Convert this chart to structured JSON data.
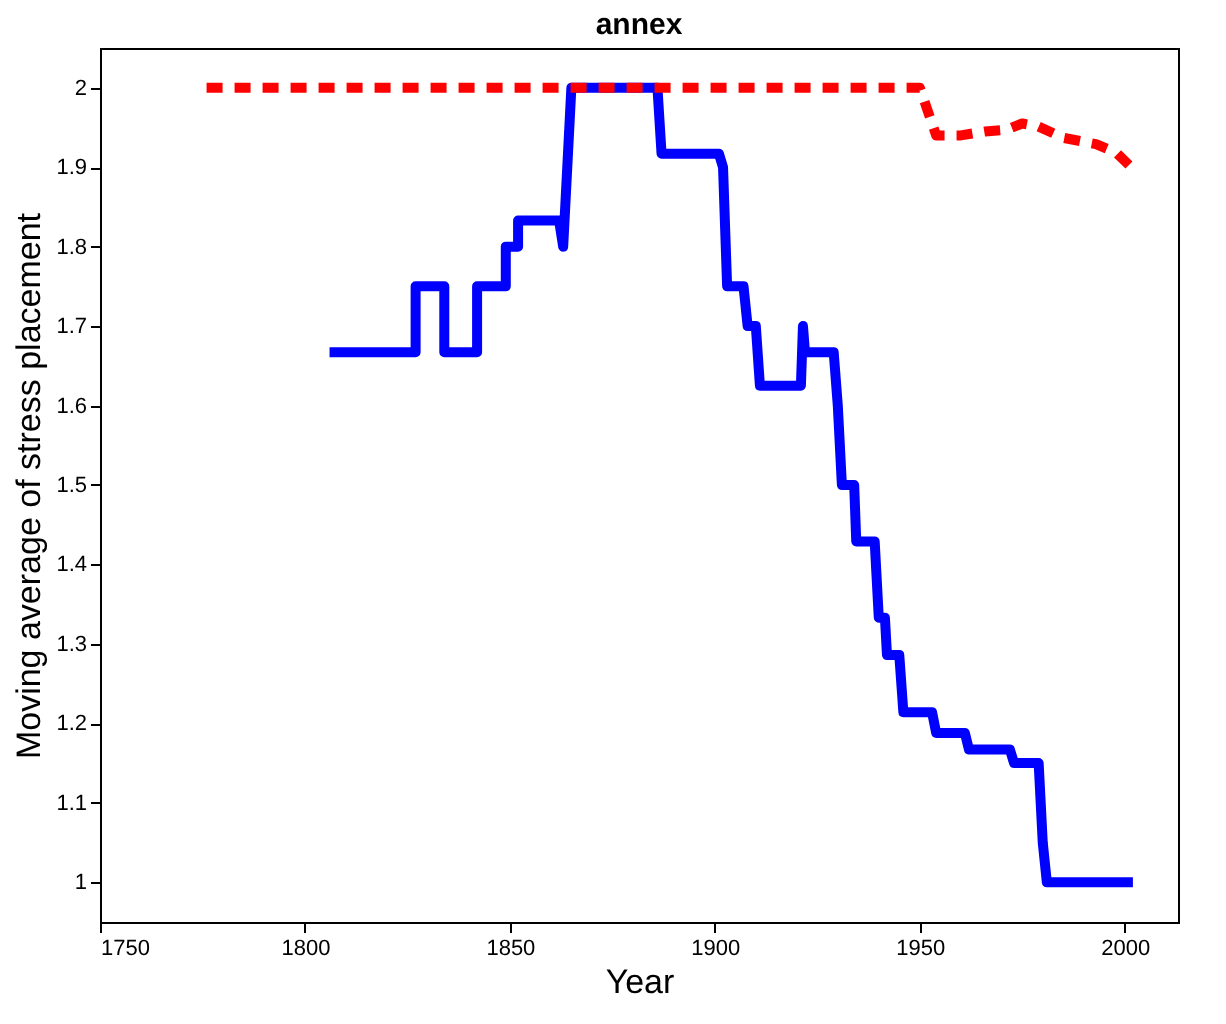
{
  "chart_data": {
    "type": "line",
    "title": "annex",
    "xlabel": "Year",
    "ylabel": "Moving average of stress placement",
    "xlim": [
      1750,
      2013
    ],
    "xticks": [
      1750,
      1800,
      1850,
      1900,
      1950,
      2000
    ],
    "ylim": [
      0.95,
      2.05
    ],
    "yticks": [
      1,
      1.1,
      1.2,
      1.3,
      1.4,
      1.5,
      1.6,
      1.7,
      1.8,
      1.9,
      2
    ],
    "grid": false,
    "marker": "none",
    "series": [
      {
        "color": "#0000ff",
        "line_style": "solid",
        "x": [
          1806,
          1827,
          1827,
          1834,
          1834,
          1842,
          1842,
          1849,
          1849,
          1852,
          1852,
          1862,
          1863,
          1865,
          1886,
          1887,
          1901,
          1902,
          1903,
          1907,
          1908,
          1910,
          1911,
          1921,
          1921.5,
          1922,
          1929,
          1930,
          1931,
          1934,
          1934.5,
          1939,
          1940,
          1941.5,
          1942,
          1945,
          1946,
          1953,
          1954,
          1961,
          1962,
          1972,
          1973,
          1979,
          1980,
          1981,
          2002
        ],
        "values": [
          1.667,
          1.667,
          1.75,
          1.75,
          1.667,
          1.667,
          1.75,
          1.75,
          1.8,
          1.8,
          1.833,
          1.833,
          1.8,
          2.0,
          2.0,
          1.917,
          1.917,
          1.9,
          1.75,
          1.75,
          1.7,
          1.7,
          1.625,
          1.625,
          1.7,
          1.667,
          1.667,
          1.6,
          1.5,
          1.5,
          1.429,
          1.429,
          1.333,
          1.333,
          1.286,
          1.286,
          1.214,
          1.214,
          1.188,
          1.188,
          1.167,
          1.167,
          1.15,
          1.15,
          1.05,
          1.0,
          1.0
        ]
      },
      {
        "color": "#ff0000",
        "line_style": "dashed",
        "x": [
          1776,
          1950,
          1952,
          1954,
          1960,
          1966,
          1971,
          1975,
          1979,
          1985,
          1993,
          1998,
          2002
        ],
        "values": [
          2.0,
          2.0,
          1.97,
          1.94,
          1.94,
          1.945,
          1.947,
          1.955,
          1.951,
          1.937,
          1.929,
          1.918,
          1.898
        ]
      }
    ]
  }
}
